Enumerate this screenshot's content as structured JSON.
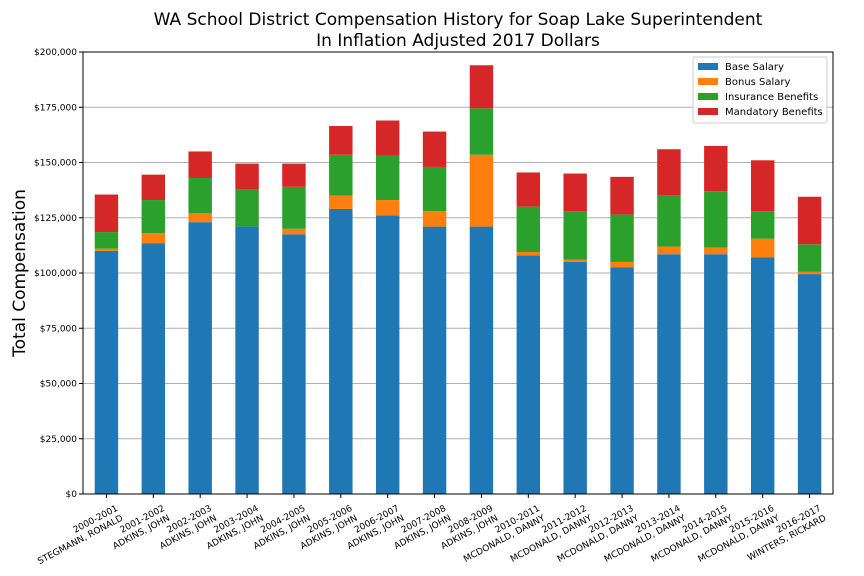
{
  "chart_data": {
    "type": "bar",
    "stacked": true,
    "title": "WA School District Compensation History for Soap Lake Superintendent",
    "subtitle": "In Inflation Adjusted 2017 Dollars",
    "xlabel": "",
    "ylabel": "Total Compensation",
    "ylim": [
      0,
      200000
    ],
    "yticks": [
      0,
      25000,
      50000,
      75000,
      100000,
      125000,
      150000,
      175000,
      200000
    ],
    "ytick_labels": [
      "$0",
      "$25,000",
      "$50,000",
      "$75,000",
      "$100,000",
      "$125,000",
      "$150,000",
      "$175,000",
      "$200,000"
    ],
    "grid": "horizontal",
    "legend_position": "top-right",
    "categories": [
      [
        "2000-2001",
        "STEGMANN, RONALD"
      ],
      [
        "2001-2002",
        "ADKINS, JOHN"
      ],
      [
        "2002-2003",
        "ADKINS, JOHN"
      ],
      [
        "2003-2004",
        "ADKINS, JOHN"
      ],
      [
        "2004-2005",
        "ADKINS, JOHN"
      ],
      [
        "2005-2006",
        "ADKINS, JOHN"
      ],
      [
        "2006-2007",
        "ADKINS, JOHN"
      ],
      [
        "2007-2008",
        "ADKINS, JOHN"
      ],
      [
        "2008-2009",
        "ADKINS, JOHN"
      ],
      [
        "2010-2011",
        "MCDONALD, DANNY"
      ],
      [
        "2011-2012",
        "MCDONALD, DANNY"
      ],
      [
        "2012-2013",
        "MCDONALD, DANNY"
      ],
      [
        "2013-2014",
        "MCDONALD, DANNY"
      ],
      [
        "2014-2015",
        "MCDONALD, DANNY"
      ],
      [
        "2015-2016",
        "MCDONALD, DANNY"
      ],
      [
        "2016-2017",
        "WINTERS, RICKARD"
      ]
    ],
    "series": [
      {
        "name": "Base Salary",
        "color": "#1f77b4",
        "values": [
          110000,
          113500,
          123000,
          121000,
          117500,
          129000,
          126000,
          121000,
          121000,
          108000,
          105000,
          102500,
          108500,
          108500,
          107000,
          99500
        ]
      },
      {
        "name": "Bonus Salary",
        "color": "#ff7f0e",
        "values": [
          1000,
          4500,
          4000,
          0,
          2500,
          6000,
          7000,
          7000,
          32500,
          1500,
          1000,
          2500,
          3500,
          3000,
          8500,
          1000
        ]
      },
      {
        "name": "Insurance Benefits",
        "color": "#2ca02c",
        "values": [
          7500,
          15000,
          16000,
          17000,
          19000,
          18500,
          20000,
          20000,
          21000,
          20500,
          22000,
          21500,
          23000,
          25500,
          12500,
          12500
        ]
      },
      {
        "name": "Mandatory Benefits",
        "color": "#d62728",
        "values": [
          17000,
          11500,
          12000,
          11500,
          10500,
          13000,
          16000,
          16000,
          19500,
          15500,
          17000,
          17000,
          21000,
          20500,
          23000,
          21500
        ]
      }
    ]
  }
}
